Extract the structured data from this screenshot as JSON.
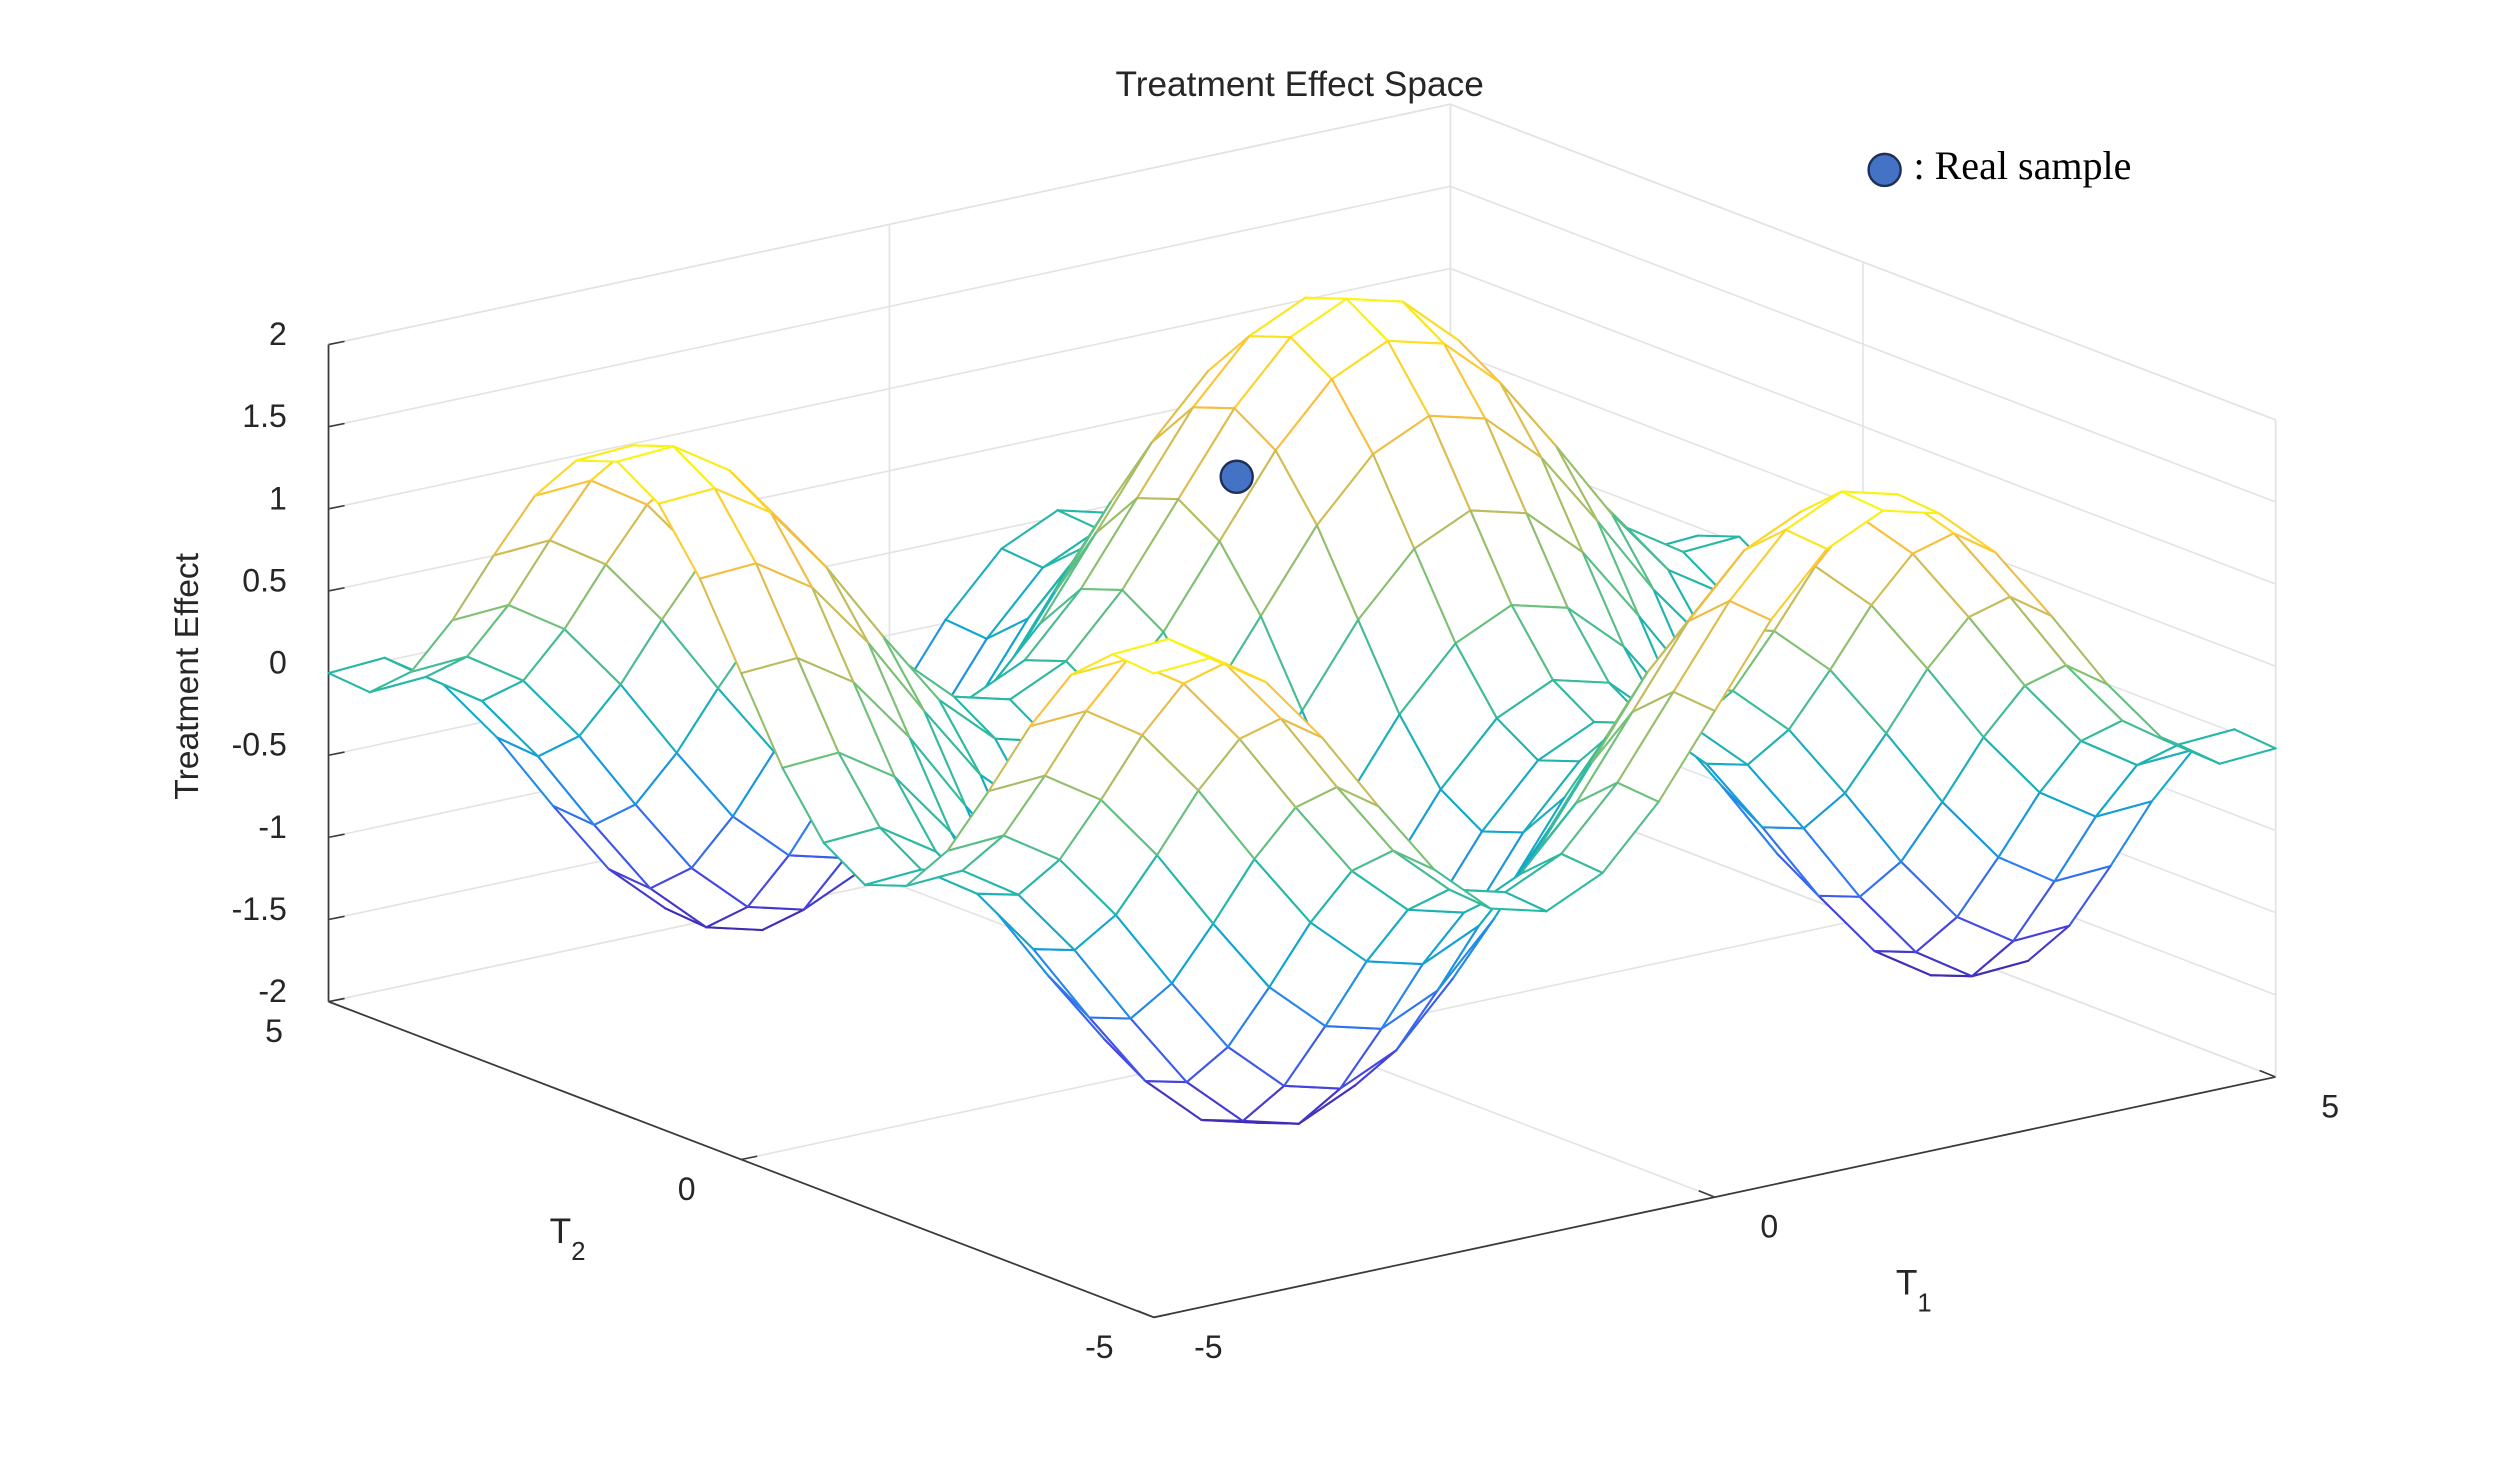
{
  "chart_data": {
    "type": "surface",
    "title": "Treatment Effect Space",
    "xlabel": "T",
    "xlabel_subscript": "1",
    "ylabel": "T",
    "ylabel_subscript": "2",
    "zlabel": "Treatment Effect",
    "xlim": [
      -5,
      5
    ],
    "ylim": [
      -5,
      5
    ],
    "zlim": [
      -2,
      2
    ],
    "xticks": [
      -5,
      0,
      5
    ],
    "yticks": [
      -5,
      0,
      5
    ],
    "zticks": [
      -2,
      -1.5,
      -1,
      -0.5,
      0,
      0.5,
      1,
      1.5,
      2
    ],
    "grid": true,
    "colormap": "parula",
    "legend": "upper right",
    "x": [
      -5,
      -4.5,
      -4,
      -3.5,
      -3,
      -2.5,
      -2,
      -1.5,
      -1,
      -0.5,
      0,
      0.5,
      1,
      1.5,
      2,
      2.5,
      3,
      3.5,
      4,
      4.5,
      5
    ],
    "y": [
      -5,
      -4.5,
      -4,
      -3.5,
      -3,
      -2.5,
      -2,
      -1.5,
      -1,
      -0.5,
      0,
      0.5,
      1,
      1.5,
      2,
      2.5,
      3,
      3.5,
      4,
      4.5,
      5
    ],
    "z": [
      [
        1.92,
        1.94,
        1.72,
        1.31,
        0.82,
        0.36,
        0.05,
        -0.04,
        0.12,
        0.48,
        0.96,
        1.44,
        1.8,
        1.96,
        1.87,
        1.56,
        1.1,
        0.61,
        0.2,
        -0.02,
        0
      ],
      [
        1.94,
        1.96,
        1.74,
        1.33,
        0.84,
        0.38,
        0.07,
        -0.02,
        0.14,
        0.5,
        0.98,
        1.46,
        1.82,
        1.98,
        1.89,
        1.58,
        1.12,
        0.63,
        0.22,
        0,
        0.02
      ],
      [
        1.72,
        1.74,
        1.52,
        1.11,
        0.62,
        0.16,
        -0.15,
        -0.24,
        -0.08,
        0.28,
        0.76,
        1.24,
        1.6,
        1.76,
        1.67,
        1.36,
        0.9,
        0.41,
        0,
        -0.22,
        -0.2
      ],
      [
        1.31,
        1.33,
        1.11,
        0.7,
        0.21,
        -0.25,
        -0.56,
        -0.65,
        -0.49,
        -0.13,
        0.35,
        0.83,
        1.19,
        1.35,
        1.26,
        0.95,
        0.49,
        0,
        -0.41,
        -0.63,
        -0.61
      ],
      [
        0.82,
        0.84,
        0.62,
        0.21,
        -0.28,
        -0.74,
        -1.05,
        -1.14,
        -0.98,
        -0.62,
        -0.14,
        0.34,
        0.7,
        0.86,
        0.77,
        0.46,
        0,
        -0.49,
        -0.9,
        -1.12,
        -1.1
      ],
      [
        0.36,
        0.38,
        0.16,
        -0.25,
        -0.74,
        -1.2,
        -1.51,
        -1.6,
        -1.44,
        -1.08,
        -0.6,
        -0.12,
        0.24,
        0.4,
        0.31,
        0,
        -0.46,
        -0.95,
        -1.36,
        -1.58,
        -1.56
      ],
      [
        0.05,
        0.07,
        -0.15,
        -0.56,
        -1.05,
        -1.51,
        -1.82,
        -1.91,
        -1.75,
        -1.39,
        -0.91,
        -0.43,
        -0.07,
        0.09,
        0,
        -0.31,
        -0.77,
        -1.26,
        -1.67,
        -1.89,
        -1.87
      ],
      [
        -0.04,
        -0.02,
        -0.24,
        -0.65,
        -1.14,
        -1.6,
        -1.91,
        -2,
        -1.84,
        -1.48,
        -1,
        -0.52,
        -0.16,
        0,
        -0.09,
        -0.4,
        -0.86,
        -1.35,
        -1.76,
        -1.98,
        -1.96
      ],
      [
        0.12,
        0.14,
        -0.08,
        -0.49,
        -0.98,
        -1.44,
        -1.75,
        -1.84,
        -1.68,
        -1.32,
        -0.84,
        -0.36,
        0,
        0.16,
        0.07,
        -0.24,
        -0.7,
        -1.19,
        -1.6,
        -1.82,
        -1.8
      ],
      [
        0.48,
        0.5,
        0.28,
        -0.13,
        -0.62,
        -1.08,
        -1.39,
        -1.48,
        -1.32,
        -0.96,
        -0.48,
        0,
        0.36,
        0.52,
        0.43,
        0.12,
        -0.34,
        -0.83,
        -1.24,
        -1.46,
        -1.44
      ],
      [
        0.96,
        0.98,
        0.76,
        0.35,
        -0.14,
        -0.6,
        -0.91,
        -1,
        -0.84,
        -0.48,
        0,
        0.48,
        0.84,
        1,
        0.91,
        0.6,
        0.14,
        -0.35,
        -0.76,
        -0.98,
        -0.96
      ],
      [
        1.44,
        1.46,
        1.24,
        0.83,
        0.34,
        -0.12,
        -0.43,
        -0.52,
        -0.36,
        0,
        0.48,
        0.96,
        1.32,
        1.48,
        1.39,
        1.08,
        0.62,
        0.13,
        -0.28,
        -0.5,
        -0.48
      ],
      [
        1.8,
        1.82,
        1.6,
        1.19,
        0.7,
        0.24,
        -0.07,
        -0.16,
        0,
        0.36,
        0.84,
        1.32,
        1.68,
        1.84,
        1.75,
        1.44,
        0.98,
        0.49,
        0.08,
        -0.14,
        -0.12
      ],
      [
        1.96,
        1.98,
        1.76,
        1.35,
        0.86,
        0.4,
        0.09,
        0,
        0.16,
        0.52,
        1,
        1.48,
        1.84,
        2,
        1.91,
        1.6,
        1.14,
        0.65,
        0.24,
        0.02,
        0.04
      ],
      [
        1.87,
        1.89,
        1.67,
        1.26,
        0.77,
        0.31,
        0,
        -0.09,
        0.07,
        0.43,
        0.91,
        1.39,
        1.75,
        1.91,
        1.82,
        1.51,
        1.05,
        0.56,
        0.15,
        -0.07,
        -0.05
      ],
      [
        1.56,
        1.58,
        1.36,
        0.95,
        0.46,
        0,
        -0.31,
        -0.4,
        -0.24,
        0.12,
        0.6,
        1.08,
        1.44,
        1.6,
        1.51,
        1.2,
        0.74,
        0.25,
        -0.16,
        -0.38,
        -0.36
      ],
      [
        1.1,
        1.12,
        0.9,
        0.49,
        0,
        -0.46,
        -0.77,
        -0.86,
        -0.7,
        -0.34,
        0.14,
        0.62,
        0.98,
        1.14,
        1.05,
        0.74,
        0.28,
        -0.21,
        -0.62,
        -0.84,
        -0.82
      ],
      [
        0.61,
        0.63,
        0.41,
        0,
        -0.49,
        -0.95,
        -1.26,
        -1.35,
        -1.19,
        -0.83,
        -0.35,
        0.13,
        0.49,
        0.65,
        0.56,
        0.25,
        -0.21,
        -0.7,
        -1.11,
        -1.33,
        -1.31
      ],
      [
        0.2,
        0.22,
        0,
        -0.41,
        -0.9,
        -1.36,
        -1.67,
        -1.76,
        -1.6,
        -1.24,
        -0.76,
        -0.28,
        0.08,
        0.24,
        0.15,
        -0.16,
        -0.62,
        -1.11,
        -1.52,
        -1.74,
        -1.72
      ],
      [
        -0.02,
        0,
        -0.22,
        -0.63,
        -1.12,
        -1.58,
        -1.89,
        -1.98,
        -1.82,
        -1.46,
        -0.98,
        -0.5,
        -0.14,
        0.02,
        -0.07,
        -0.38,
        -0.84,
        -1.33,
        -1.74,
        -1.96,
        -1.94
      ],
      [
        0,
        0.02,
        -0.2,
        -0.61,
        -1.1,
        -1.56,
        -1.87,
        -1.96,
        -1.8,
        -1.44,
        -0.96,
        -0.48,
        -0.12,
        0.04,
        -0.05,
        -0.36,
        -0.82,
        -1.31,
        -1.72,
        -1.94,
        -1.92
      ]
    ],
    "series": [
      {
        "name": ": Real sample",
        "type": "scatter",
        "color": "#4472c4",
        "x": [
          0.3
        ],
        "y": [
          1.2
        ],
        "z": [
          1.15
        ]
      }
    ]
  }
}
